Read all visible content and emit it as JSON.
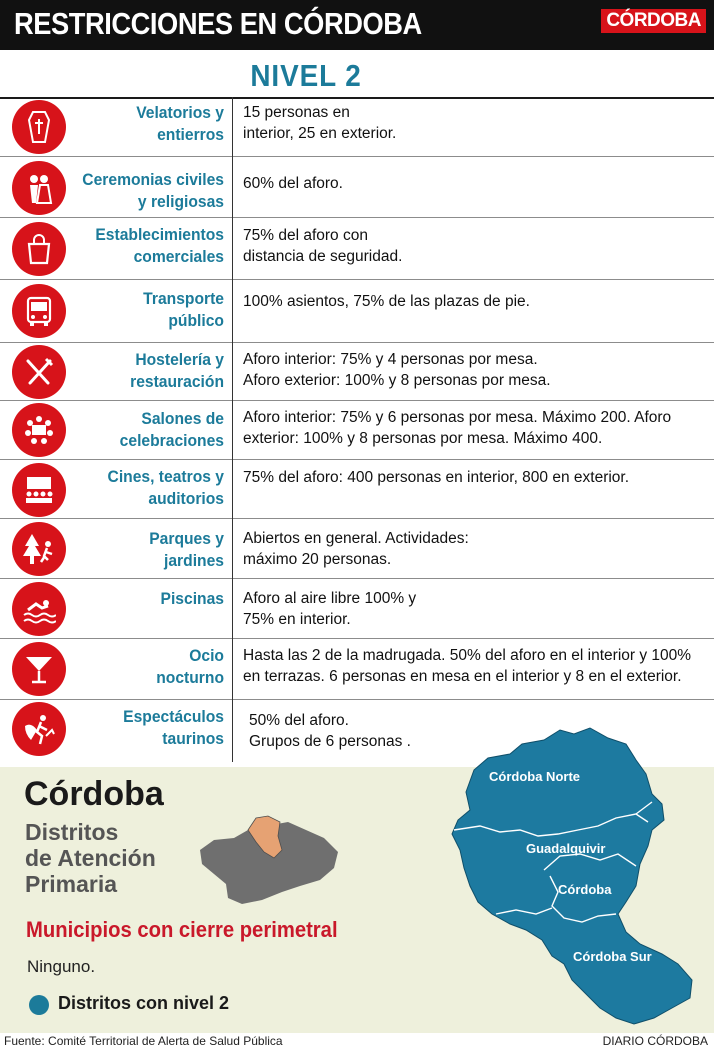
{
  "header": {
    "title": "RESTRICCIONES EN CÓRDOBA",
    "logo": "CÓRDOBA"
  },
  "level": "NIVEL 2",
  "rows": [
    {
      "icon": "coffin-icon",
      "cat1": "Velatorios y",
      "cat2": "entierros",
      "d1": "15 personas en",
      "d2": "interior, 25 en exterior."
    },
    {
      "icon": "wedding-couple-icon",
      "cat1": "Ceremonias civiles",
      "cat2": "y religiosas",
      "d1": "60% del aforo.",
      "d2": ""
    },
    {
      "icon": "shopping-bag-icon",
      "cat1": "Establecimientos",
      "cat2": "comerciales",
      "d1": "75% del aforo con",
      "d2": "distancia de seguridad."
    },
    {
      "icon": "bus-icon",
      "cat1": "Transporte",
      "cat2": "público",
      "d1": "100% asientos, 75% de las plazas de pie.",
      "d2": ""
    },
    {
      "icon": "fork-knife-icon",
      "cat1": "Hostelería y",
      "cat2": "restauración",
      "d1": "Aforo interior: 75% y 4 personas por mesa.",
      "d2": "Aforo exterior: 100% y 8 personas por mesa."
    },
    {
      "icon": "banquet-table-icon",
      "cat1": "Salones de",
      "cat2": "celebraciones",
      "d1": "Aforo interior: 75% y 6 personas por mesa. Máximo 200. Aforo",
      "d2": "exterior: 100% y 8 personas por mesa. Máximo 400."
    },
    {
      "icon": "cinema-audience-icon",
      "cat1": "Cines, teatros y",
      "cat2": "auditorios",
      "d1": "75% del aforo: 400 personas en interior, 800 en exterior.",
      "d2": ""
    },
    {
      "icon": "park-runner-icon",
      "cat1": "Parques y",
      "cat2": "jardines",
      "d1": "Abiertos en general. Actividades:",
      "d2": "máximo 20 personas."
    },
    {
      "icon": "swimmer-icon",
      "cat1": "Piscinas",
      "cat2": "",
      "d1": "Aforo al aire libre 100% y",
      "d2": "75% en interior."
    },
    {
      "icon": "cocktail-glass-icon",
      "cat1": "Ocio",
      "cat2": "nocturno",
      "d1": "Hasta las 2 de la madrugada. 50% del aforo en el interior y 100%",
      "d2": "en terrazas. 6 personas en mesa en el interior y 8 en el exterior."
    },
    {
      "icon": "bullfighter-icon",
      "cat1": "Espectáculos",
      "cat2": "taurinos",
      "d1": "50% del aforo.",
      "d2": "Grupos de 6 personas ."
    }
  ],
  "bottom": {
    "title": "Córdoba",
    "subtitle1": "Distritos",
    "subtitle2": "de Atención",
    "subtitle3": "Primaria",
    "perimeter_title": "Municipios con cierre perimetral",
    "perimeter_value": "Ninguno.",
    "legend": "Distritos con nivel 2"
  },
  "map": {
    "north": "Córdoba Norte",
    "guadalquivir": "Guadalquivir",
    "cordoba": "Córdoba",
    "south": "Córdoba Sur"
  },
  "footer": {
    "source": "Fuente: Comité Territorial de Alerta de Salud Pública",
    "credit": "DIARIO CÓRDOBA"
  },
  "colors": {
    "accent": "#1c7b9a",
    "red": "#d7131a",
    "map_blue": "#1d7aa0",
    "map_gray": "#6f6f6f",
    "map_orange": "#e6a273",
    "bottom_bg": "#eef0dc"
  }
}
